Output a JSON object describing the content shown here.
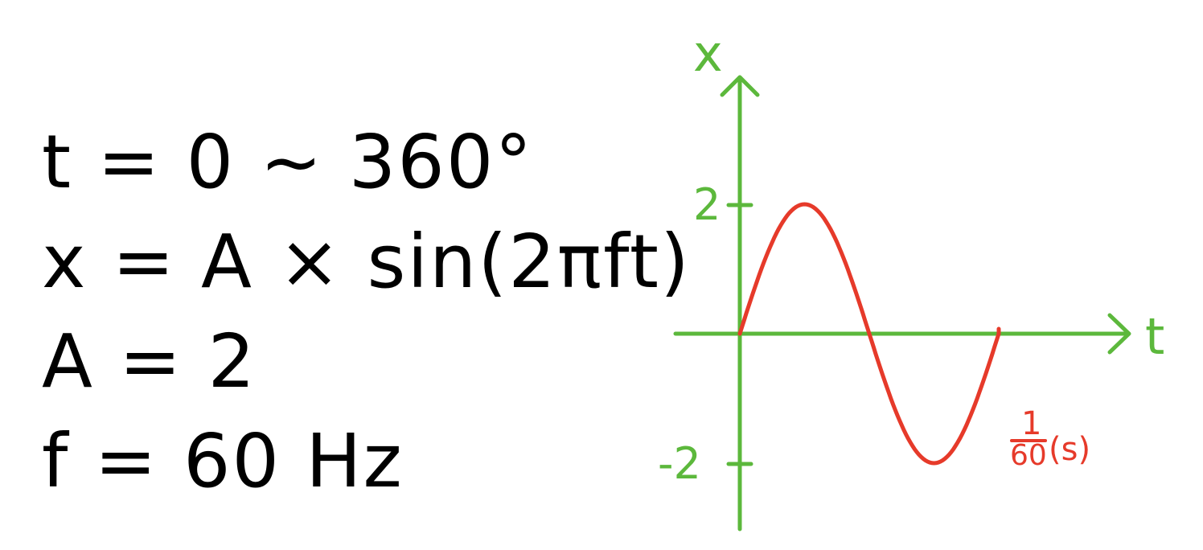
{
  "equations": [
    "t = 0 ~ 360°",
    "x = A × sin(2πft)",
    "A = 2",
    "f = 60 Hz"
  ],
  "diagram": {
    "x_axis_label": "t",
    "y_axis_label": "x",
    "y_tick_top": "2",
    "y_tick_bottom": "-2",
    "period_numerator": "1",
    "period_denominator": "60",
    "period_unit": "(s)",
    "colors": {
      "axes": "#5cb83c",
      "curve": "#e63a2a",
      "text": "#000000"
    }
  }
}
